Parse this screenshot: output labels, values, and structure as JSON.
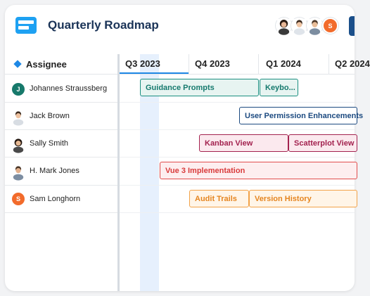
{
  "app": {
    "title": "Quarterly Roadmap",
    "header_avatars": [
      {
        "kind": "photo",
        "skin": "#e8b796",
        "hair": "#2a1c14",
        "shirt": "#3a3a3a"
      },
      {
        "kind": "photo",
        "skin": "#f0c6a5",
        "hair": "#3b2a1e",
        "shirt": "#dfe4ea"
      },
      {
        "kind": "photo",
        "skin": "#e9bd98",
        "hair": "#4a3626",
        "shirt": "#7c8da0"
      },
      {
        "kind": "letter",
        "letter": "S",
        "color": "#f26b2b"
      }
    ]
  },
  "table": {
    "assignee_header": "Assignee",
    "quarters": [
      "Q3 2023",
      "Q4 2023",
      "Q1 2024",
      "Q2 2024"
    ]
  },
  "rows": [
    {
      "name": "Johannes Straussberg",
      "avatar": {
        "kind": "letter",
        "letter": "J",
        "color": "#17796b"
      }
    },
    {
      "name": "Jack Brown",
      "avatar": {
        "kind": "photo",
        "skin": "#eec2a0",
        "hair": "#3a2a1e",
        "shirt": "#d8dde3"
      }
    },
    {
      "name": "Sally Smith",
      "avatar": {
        "kind": "photo",
        "skin": "#e6b994",
        "hair": "#231710",
        "shirt": "#4a4a4a"
      }
    },
    {
      "name": "H. Mark Jones",
      "avatar": {
        "kind": "photo",
        "skin": "#e3b08c",
        "hair": "#4a3627",
        "shirt": "#7d8ea2"
      }
    },
    {
      "name": "Sam Longhorn",
      "avatar": {
        "kind": "letter",
        "letter": "S",
        "color": "#f26b2b"
      }
    }
  ],
  "tasks": [
    {
      "label": "Guidance Prompts",
      "row": 0,
      "color": "teal"
    },
    {
      "label": "Keybo...",
      "row": 0,
      "color": "teal"
    },
    {
      "label": "User Permission Enhancements",
      "row": 1,
      "color": "navy"
    },
    {
      "label": "Kanban View",
      "row": 2,
      "color": "purple"
    },
    {
      "label": "Scatterplot View",
      "row": 2,
      "color": "purple"
    },
    {
      "label": "Vue 3 Implementation",
      "row": 3,
      "color": "red"
    },
    {
      "label": "Audit Trails",
      "row": 4,
      "color": "orange"
    },
    {
      "label": "Version History",
      "row": 4,
      "color": "orange"
    }
  ],
  "colors": {
    "accent": "#1e88e5",
    "title": "#1a3357",
    "today_highlight": "#e6f0fd"
  }
}
